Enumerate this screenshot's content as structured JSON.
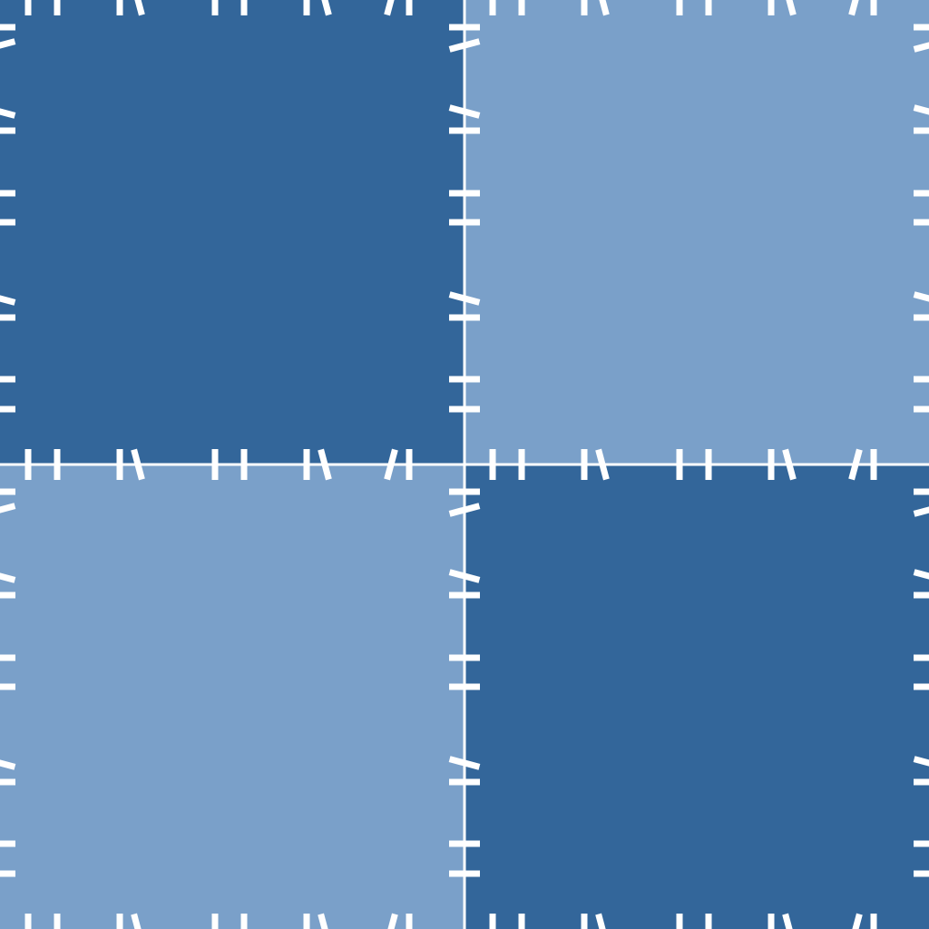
{
  "colors": {
    "dark_tile": "#33669a",
    "light_tile": "#7aa0c9",
    "divider": "#ffffff",
    "tick": "#ffffff"
  },
  "grid": {
    "rows": 2,
    "cols": 2,
    "pattern": [
      "dark",
      "light",
      "light",
      "dark"
    ]
  }
}
